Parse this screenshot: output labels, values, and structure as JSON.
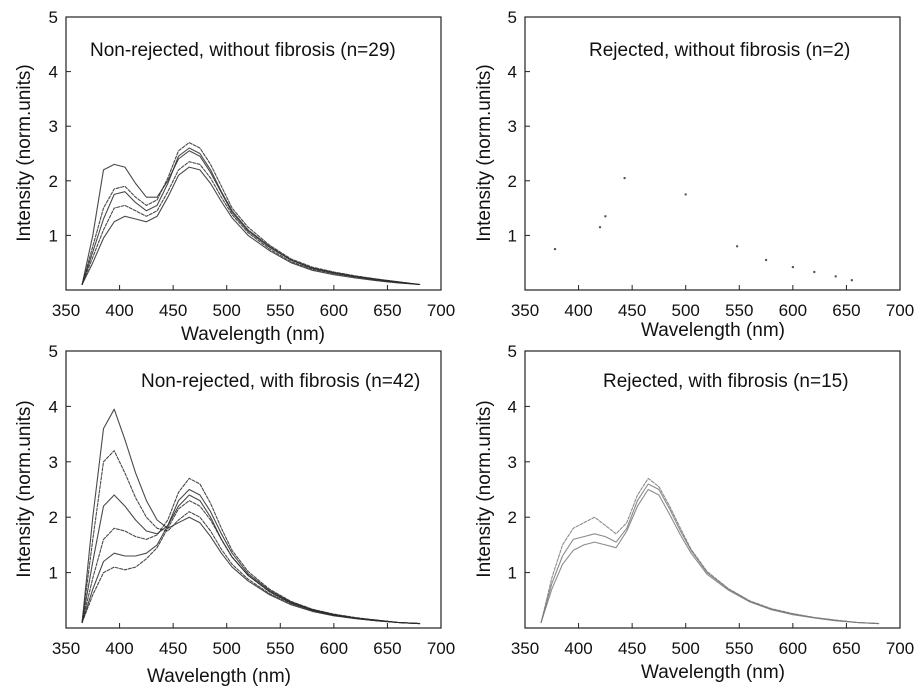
{
  "chart_data": [
    {
      "type": "line",
      "title": "Non-rejected, without fibrosis (n=29)",
      "xlabel": "Wavelength (nm)",
      "ylabel": "Intensity (norm.units)",
      "xlim": [
        350,
        700
      ],
      "ylim": [
        0,
        5
      ],
      "xticks": [
        "350",
        "400",
        "450",
        "500",
        "550",
        "600",
        "650",
        "700"
      ],
      "yticks": [
        "1",
        "2",
        "3",
        "4",
        "5"
      ],
      "grid": false,
      "line_color": "#2a2a2a",
      "x": [
        365,
        375,
        385,
        395,
        405,
        415,
        425,
        435,
        445,
        455,
        465,
        475,
        485,
        495,
        505,
        520,
        540,
        560,
        580,
        600,
        620,
        640,
        660,
        680
      ],
      "series": [
        {
          "values": [
            0.1,
            0.7,
            1.3,
            1.75,
            1.8,
            1.6,
            1.45,
            1.55,
            1.95,
            2.45,
            2.6,
            2.5,
            2.2,
            1.8,
            1.45,
            1.1,
            0.8,
            0.55,
            0.4,
            0.32,
            0.25,
            0.2,
            0.15,
            0.1
          ]
        },
        {
          "values": [
            0.1,
            0.6,
            1.1,
            1.5,
            1.55,
            1.45,
            1.35,
            1.45,
            1.8,
            2.2,
            2.35,
            2.3,
            2.05,
            1.7,
            1.38,
            1.05,
            0.75,
            0.52,
            0.38,
            0.3,
            0.24,
            0.18,
            0.14,
            0.1
          ]
        },
        {
          "values": [
            0.1,
            0.5,
            0.95,
            1.25,
            1.35,
            1.3,
            1.25,
            1.35,
            1.7,
            2.1,
            2.25,
            2.2,
            1.95,
            1.62,
            1.32,
            1.0,
            0.72,
            0.5,
            0.36,
            0.28,
            0.22,
            0.17,
            0.13,
            0.1
          ]
        },
        {
          "values": [
            0.1,
            0.8,
            1.5,
            1.85,
            1.9,
            1.7,
            1.55,
            1.65,
            2.05,
            2.55,
            2.7,
            2.6,
            2.3,
            1.9,
            1.5,
            1.15,
            0.82,
            0.57,
            0.42,
            0.33,
            0.26,
            0.2,
            0.15,
            0.1
          ]
        },
        {
          "values": [
            0.1,
            1.0,
            2.2,
            2.3,
            2.25,
            1.95,
            1.7,
            1.7,
            2.0,
            2.4,
            2.55,
            2.45,
            2.15,
            1.78,
            1.42,
            1.08,
            0.78,
            0.55,
            0.4,
            0.31,
            0.24,
            0.19,
            0.14,
            0.1
          ]
        }
      ]
    },
    {
      "type": "scatter",
      "title": "Rejected, without fibrosis (n=2)",
      "xlabel": "Wavelength (nm)",
      "ylabel": "Intensity (norm.units)",
      "xlim": [
        350,
        700
      ],
      "ylim": [
        0,
        5
      ],
      "xticks": [
        "350",
        "400",
        "450",
        "500",
        "550",
        "600",
        "650",
        "700"
      ],
      "yticks": [
        "1",
        "2",
        "3",
        "4",
        "5"
      ],
      "grid": false,
      "line_color": "#555555",
      "points": [
        {
          "x": 378,
          "y": 0.75
        },
        {
          "x": 420,
          "y": 1.15
        },
        {
          "x": 425,
          "y": 1.35
        },
        {
          "x": 443,
          "y": 2.05
        },
        {
          "x": 500,
          "y": 1.75
        },
        {
          "x": 548,
          "y": 0.8
        },
        {
          "x": 575,
          "y": 0.55
        },
        {
          "x": 600,
          "y": 0.42
        },
        {
          "x": 620,
          "y": 0.33
        },
        {
          "x": 640,
          "y": 0.25
        },
        {
          "x": 655,
          "y": 0.18
        }
      ]
    },
    {
      "type": "line",
      "title": "Non-rejected, with fibrosis (n=42)",
      "xlabel": "Wavelength (nm)",
      "ylabel": "Intensity (norm.units)",
      "xlim": [
        350,
        700
      ],
      "ylim": [
        0,
        5
      ],
      "xticks": [
        "350",
        "400",
        "450",
        "500",
        "550",
        "600",
        "650",
        "700"
      ],
      "yticks": [
        "1",
        "2",
        "3",
        "4",
        "5"
      ],
      "grid": false,
      "line_color": "#2a2a2a",
      "x": [
        365,
        375,
        385,
        395,
        405,
        415,
        425,
        435,
        445,
        455,
        465,
        475,
        485,
        495,
        505,
        520,
        540,
        560,
        580,
        600,
        620,
        640,
        660,
        680
      ],
      "series": [
        {
          "values": [
            0.1,
            2.0,
            3.6,
            3.95,
            3.4,
            2.8,
            2.3,
            1.95,
            1.8,
            1.9,
            2.0,
            1.9,
            1.65,
            1.35,
            1.1,
            0.85,
            0.6,
            0.42,
            0.3,
            0.22,
            0.17,
            0.13,
            0.1,
            0.08
          ]
        },
        {
          "values": [
            0.1,
            1.6,
            3.0,
            3.2,
            2.8,
            2.35,
            2.0,
            1.8,
            1.75,
            1.95,
            2.1,
            2.0,
            1.75,
            1.42,
            1.15,
            0.88,
            0.62,
            0.44,
            0.31,
            0.23,
            0.18,
            0.14,
            0.1,
            0.08
          ]
        },
        {
          "values": [
            0.1,
            1.2,
            2.2,
            2.4,
            2.2,
            1.95,
            1.75,
            1.7,
            1.85,
            2.2,
            2.4,
            2.3,
            2.0,
            1.6,
            1.28,
            0.95,
            0.66,
            0.46,
            0.33,
            0.24,
            0.18,
            0.14,
            0.1,
            0.08
          ]
        },
        {
          "values": [
            0.1,
            0.9,
            1.6,
            1.8,
            1.75,
            1.65,
            1.6,
            1.68,
            1.95,
            2.45,
            2.7,
            2.6,
            2.25,
            1.8,
            1.4,
            1.02,
            0.7,
            0.48,
            0.34,
            0.25,
            0.19,
            0.14,
            0.1,
            0.08
          ]
        },
        {
          "values": [
            0.1,
            0.7,
            1.2,
            1.35,
            1.3,
            1.3,
            1.35,
            1.5,
            1.85,
            2.3,
            2.5,
            2.4,
            2.1,
            1.7,
            1.35,
            0.98,
            0.68,
            0.47,
            0.33,
            0.24,
            0.18,
            0.14,
            0.1,
            0.08
          ]
        },
        {
          "values": [
            0.1,
            0.6,
            1.0,
            1.1,
            1.05,
            1.1,
            1.25,
            1.45,
            1.8,
            2.15,
            2.3,
            2.2,
            1.95,
            1.6,
            1.28,
            0.95,
            0.65,
            0.45,
            0.32,
            0.23,
            0.17,
            0.13,
            0.1,
            0.08
          ]
        }
      ]
    },
    {
      "type": "line",
      "title": "Rejected, with fibrosis (n=15)",
      "xlabel": "Wavelength (nm)",
      "ylabel": "Intensity (norm.units)",
      "xlim": [
        350,
        700
      ],
      "ylim": [
        0,
        5
      ],
      "xticks": [
        "350",
        "400",
        "450",
        "500",
        "550",
        "600",
        "650",
        "700"
      ],
      "yticks": [
        "1",
        "2",
        "3",
        "4",
        "5"
      ],
      "grid": false,
      "line_color": "#777777",
      "x": [
        365,
        375,
        385,
        395,
        405,
        415,
        425,
        435,
        445,
        455,
        465,
        475,
        485,
        495,
        505,
        520,
        540,
        560,
        580,
        600,
        620,
        640,
        660,
        680
      ],
      "series": [
        {
          "values": [
            0.1,
            0.8,
            1.3,
            1.6,
            1.65,
            1.7,
            1.65,
            1.55,
            1.8,
            2.3,
            2.6,
            2.5,
            2.15,
            1.75,
            1.4,
            1.0,
            0.7,
            0.48,
            0.34,
            0.25,
            0.19,
            0.14,
            0.1,
            0.08
          ]
        },
        {
          "values": [
            0.1,
            0.9,
            1.5,
            1.8,
            1.9,
            2.0,
            1.85,
            1.7,
            1.9,
            2.4,
            2.7,
            2.55,
            2.2,
            1.8,
            1.42,
            1.02,
            0.71,
            0.49,
            0.35,
            0.26,
            0.19,
            0.14,
            0.1,
            0.08
          ]
        },
        {
          "values": [
            0.1,
            0.7,
            1.15,
            1.4,
            1.5,
            1.55,
            1.5,
            1.45,
            1.75,
            2.2,
            2.5,
            2.4,
            2.05,
            1.68,
            1.35,
            0.97,
            0.68,
            0.47,
            0.33,
            0.24,
            0.18,
            0.13,
            0.1,
            0.08
          ]
        }
      ]
    }
  ]
}
